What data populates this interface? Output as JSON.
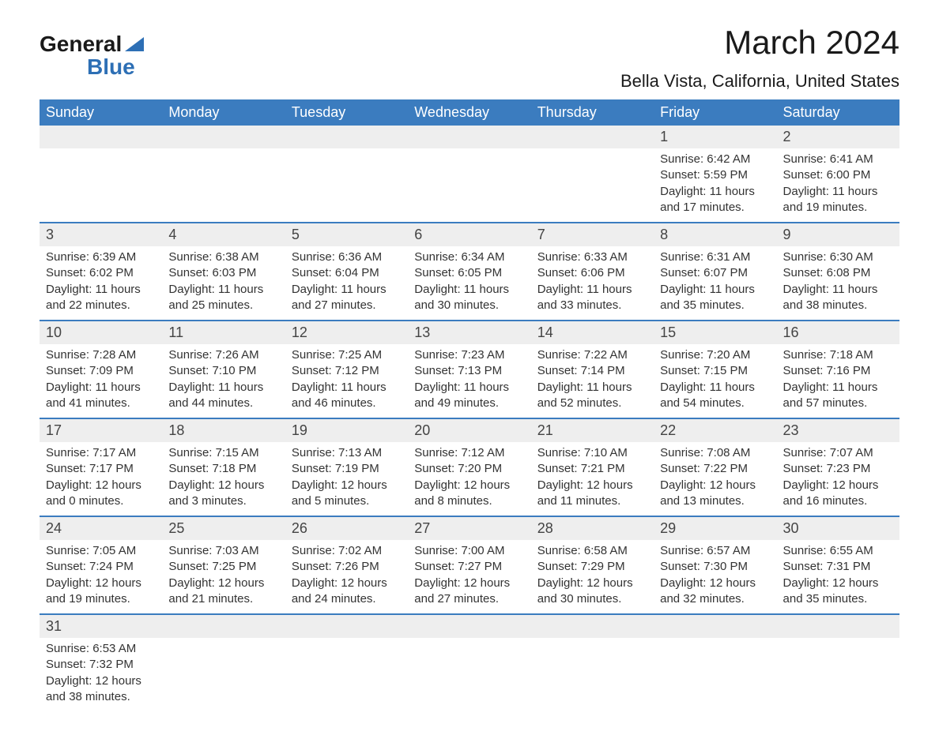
{
  "logo": {
    "word1": "General",
    "word2": "Blue"
  },
  "title": "March 2024",
  "location": "Bella Vista, California, United States",
  "colors": {
    "header_bg": "#3b7cbf",
    "header_text": "#ffffff",
    "daynum_bg": "#eeeeee",
    "row_border": "#3b7cbf",
    "logo_blue": "#2d6fb5",
    "body_text": "#333333",
    "page_bg": "#ffffff"
  },
  "weekdays": [
    "Sunday",
    "Monday",
    "Tuesday",
    "Wednesday",
    "Thursday",
    "Friday",
    "Saturday"
  ],
  "weeks": [
    {
      "days": [
        null,
        null,
        null,
        null,
        null,
        {
          "n": "1",
          "sunrise": "Sunrise: 6:42 AM",
          "sunset": "Sunset: 5:59 PM",
          "day1": "Daylight: 11 hours",
          "day2": "and 17 minutes."
        },
        {
          "n": "2",
          "sunrise": "Sunrise: 6:41 AM",
          "sunset": "Sunset: 6:00 PM",
          "day1": "Daylight: 11 hours",
          "day2": "and 19 minutes."
        }
      ]
    },
    {
      "days": [
        {
          "n": "3",
          "sunrise": "Sunrise: 6:39 AM",
          "sunset": "Sunset: 6:02 PM",
          "day1": "Daylight: 11 hours",
          "day2": "and 22 minutes."
        },
        {
          "n": "4",
          "sunrise": "Sunrise: 6:38 AM",
          "sunset": "Sunset: 6:03 PM",
          "day1": "Daylight: 11 hours",
          "day2": "and 25 minutes."
        },
        {
          "n": "5",
          "sunrise": "Sunrise: 6:36 AM",
          "sunset": "Sunset: 6:04 PM",
          "day1": "Daylight: 11 hours",
          "day2": "and 27 minutes."
        },
        {
          "n": "6",
          "sunrise": "Sunrise: 6:34 AM",
          "sunset": "Sunset: 6:05 PM",
          "day1": "Daylight: 11 hours",
          "day2": "and 30 minutes."
        },
        {
          "n": "7",
          "sunrise": "Sunrise: 6:33 AM",
          "sunset": "Sunset: 6:06 PM",
          "day1": "Daylight: 11 hours",
          "day2": "and 33 minutes."
        },
        {
          "n": "8",
          "sunrise": "Sunrise: 6:31 AM",
          "sunset": "Sunset: 6:07 PM",
          "day1": "Daylight: 11 hours",
          "day2": "and 35 minutes."
        },
        {
          "n": "9",
          "sunrise": "Sunrise: 6:30 AM",
          "sunset": "Sunset: 6:08 PM",
          "day1": "Daylight: 11 hours",
          "day2": "and 38 minutes."
        }
      ]
    },
    {
      "days": [
        {
          "n": "10",
          "sunrise": "Sunrise: 7:28 AM",
          "sunset": "Sunset: 7:09 PM",
          "day1": "Daylight: 11 hours",
          "day2": "and 41 minutes."
        },
        {
          "n": "11",
          "sunrise": "Sunrise: 7:26 AM",
          "sunset": "Sunset: 7:10 PM",
          "day1": "Daylight: 11 hours",
          "day2": "and 44 minutes."
        },
        {
          "n": "12",
          "sunrise": "Sunrise: 7:25 AM",
          "sunset": "Sunset: 7:12 PM",
          "day1": "Daylight: 11 hours",
          "day2": "and 46 minutes."
        },
        {
          "n": "13",
          "sunrise": "Sunrise: 7:23 AM",
          "sunset": "Sunset: 7:13 PM",
          "day1": "Daylight: 11 hours",
          "day2": "and 49 minutes."
        },
        {
          "n": "14",
          "sunrise": "Sunrise: 7:22 AM",
          "sunset": "Sunset: 7:14 PM",
          "day1": "Daylight: 11 hours",
          "day2": "and 52 minutes."
        },
        {
          "n": "15",
          "sunrise": "Sunrise: 7:20 AM",
          "sunset": "Sunset: 7:15 PM",
          "day1": "Daylight: 11 hours",
          "day2": "and 54 minutes."
        },
        {
          "n": "16",
          "sunrise": "Sunrise: 7:18 AM",
          "sunset": "Sunset: 7:16 PM",
          "day1": "Daylight: 11 hours",
          "day2": "and 57 minutes."
        }
      ]
    },
    {
      "days": [
        {
          "n": "17",
          "sunrise": "Sunrise: 7:17 AM",
          "sunset": "Sunset: 7:17 PM",
          "day1": "Daylight: 12 hours",
          "day2": "and 0 minutes."
        },
        {
          "n": "18",
          "sunrise": "Sunrise: 7:15 AM",
          "sunset": "Sunset: 7:18 PM",
          "day1": "Daylight: 12 hours",
          "day2": "and 3 minutes."
        },
        {
          "n": "19",
          "sunrise": "Sunrise: 7:13 AM",
          "sunset": "Sunset: 7:19 PM",
          "day1": "Daylight: 12 hours",
          "day2": "and 5 minutes."
        },
        {
          "n": "20",
          "sunrise": "Sunrise: 7:12 AM",
          "sunset": "Sunset: 7:20 PM",
          "day1": "Daylight: 12 hours",
          "day2": "and 8 minutes."
        },
        {
          "n": "21",
          "sunrise": "Sunrise: 7:10 AM",
          "sunset": "Sunset: 7:21 PM",
          "day1": "Daylight: 12 hours",
          "day2": "and 11 minutes."
        },
        {
          "n": "22",
          "sunrise": "Sunrise: 7:08 AM",
          "sunset": "Sunset: 7:22 PM",
          "day1": "Daylight: 12 hours",
          "day2": "and 13 minutes."
        },
        {
          "n": "23",
          "sunrise": "Sunrise: 7:07 AM",
          "sunset": "Sunset: 7:23 PM",
          "day1": "Daylight: 12 hours",
          "day2": "and 16 minutes."
        }
      ]
    },
    {
      "days": [
        {
          "n": "24",
          "sunrise": "Sunrise: 7:05 AM",
          "sunset": "Sunset: 7:24 PM",
          "day1": "Daylight: 12 hours",
          "day2": "and 19 minutes."
        },
        {
          "n": "25",
          "sunrise": "Sunrise: 7:03 AM",
          "sunset": "Sunset: 7:25 PM",
          "day1": "Daylight: 12 hours",
          "day2": "and 21 minutes."
        },
        {
          "n": "26",
          "sunrise": "Sunrise: 7:02 AM",
          "sunset": "Sunset: 7:26 PM",
          "day1": "Daylight: 12 hours",
          "day2": "and 24 minutes."
        },
        {
          "n": "27",
          "sunrise": "Sunrise: 7:00 AM",
          "sunset": "Sunset: 7:27 PM",
          "day1": "Daylight: 12 hours",
          "day2": "and 27 minutes."
        },
        {
          "n": "28",
          "sunrise": "Sunrise: 6:58 AM",
          "sunset": "Sunset: 7:29 PM",
          "day1": "Daylight: 12 hours",
          "day2": "and 30 minutes."
        },
        {
          "n": "29",
          "sunrise": "Sunrise: 6:57 AM",
          "sunset": "Sunset: 7:30 PM",
          "day1": "Daylight: 12 hours",
          "day2": "and 32 minutes."
        },
        {
          "n": "30",
          "sunrise": "Sunrise: 6:55 AM",
          "sunset": "Sunset: 7:31 PM",
          "day1": "Daylight: 12 hours",
          "day2": "and 35 minutes."
        }
      ]
    },
    {
      "days": [
        {
          "n": "31",
          "sunrise": "Sunrise: 6:53 AM",
          "sunset": "Sunset: 7:32 PM",
          "day1": "Daylight: 12 hours",
          "day2": "and 38 minutes."
        },
        null,
        null,
        null,
        null,
        null,
        null
      ]
    }
  ]
}
